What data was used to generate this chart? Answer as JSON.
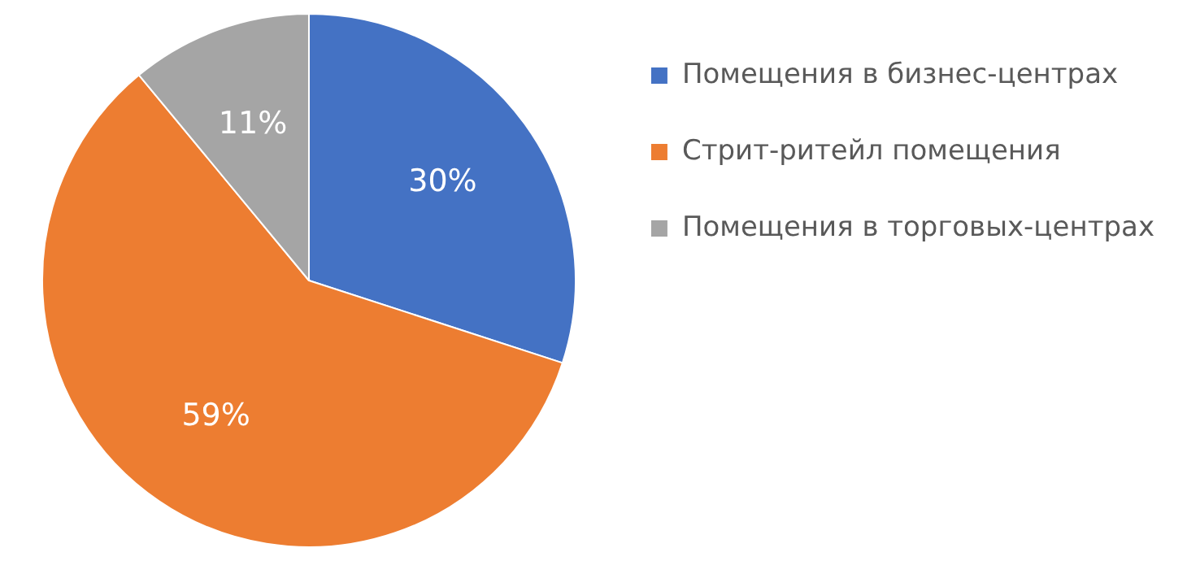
{
  "chart_data": {
    "type": "pie",
    "categories": [
      "Помещения в бизнес-центрах",
      "Стрит-ритейл помещения",
      "Помещения в торговых-центрах"
    ],
    "values": [
      30,
      59,
      11
    ],
    "colors": [
      "#4472c4",
      "#ed7d31",
      "#a5a5a5"
    ],
    "value_labels": [
      "30%",
      "59%",
      "11%"
    ],
    "legend": "right"
  }
}
